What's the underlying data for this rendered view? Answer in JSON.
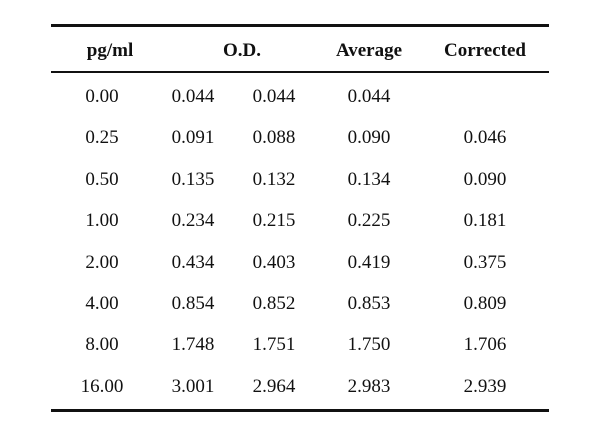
{
  "table": {
    "headers": {
      "concentration": "pg/ml",
      "od": "O.D.",
      "average": "Average",
      "corrected": "Corrected"
    },
    "rows": [
      {
        "conc": "0.00",
        "od1": "0.044",
        "od2": "0.044",
        "avg": "0.044",
        "corr": ""
      },
      {
        "conc": "0.25",
        "od1": "0.091",
        "od2": "0.088",
        "avg": "0.090",
        "corr": "0.046"
      },
      {
        "conc": "0.50",
        "od1": "0.135",
        "od2": "0.132",
        "avg": "0.134",
        "corr": "0.090"
      },
      {
        "conc": "1.00",
        "od1": "0.234",
        "od2": "0.215",
        "avg": "0.225",
        "corr": "0.181"
      },
      {
        "conc": "2.00",
        "od1": "0.434",
        "od2": "0.403",
        "avg": "0.419",
        "corr": "0.375"
      },
      {
        "conc": "4.00",
        "od1": "0.854",
        "od2": "0.852",
        "avg": "0.853",
        "corr": "0.809"
      },
      {
        "conc": "8.00",
        "od1": "1.748",
        "od2": "1.751",
        "avg": "1.750",
        "corr": "1.706"
      },
      {
        "conc": "16.00",
        "od1": "3.001",
        "od2": "2.964",
        "avg": "2.983",
        "corr": "2.939"
      }
    ]
  }
}
